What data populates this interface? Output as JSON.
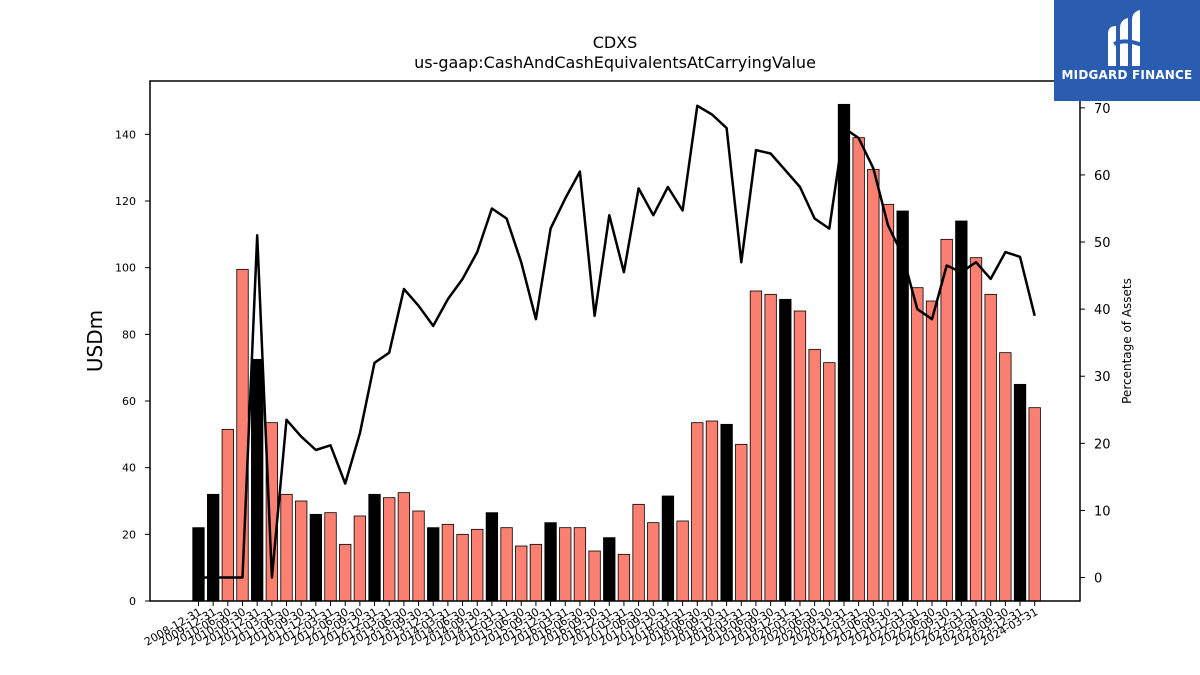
{
  "logo": {
    "text": "MIDGARD FINANCE"
  },
  "colors": {
    "bar_normal": "#fa8072",
    "bar_highlight": "#000000",
    "line": "#000000",
    "logo_bg": "#2a5db0"
  },
  "chart_data": {
    "type": "bar+line",
    "title": "CDXS",
    "subtitle": "us-gaap:CashAndCashEquivalentsAtCarryingValue",
    "ylabel": "USDm",
    "y2label": "Percentage of Assets",
    "ylim": [
      0,
      156
    ],
    "y2lim": [
      -3.5,
      74
    ],
    "yticks": [
      0,
      20,
      40,
      60,
      80,
      100,
      120,
      140
    ],
    "y2ticks": [
      0,
      10,
      20,
      30,
      40,
      50,
      60,
      70
    ],
    "categories": [
      "2008-12-31",
      "2009-12-31",
      "2010-06-30",
      "2010-09-30",
      "2010-12-31",
      "2011-03-31",
      "2011-06-30",
      "2011-09-30",
      "2011-12-31",
      "2012-03-31",
      "2012-06-30",
      "2012-09-30",
      "2012-12-31",
      "2013-03-31",
      "2013-06-30",
      "2013-09-30",
      "2013-12-31",
      "2014-03-31",
      "2014-06-30",
      "2014-09-30",
      "2014-12-31",
      "2015-03-31",
      "2015-06-30",
      "2015-09-30",
      "2015-12-31",
      "2016-03-31",
      "2016-06-30",
      "2016-09-30",
      "2016-12-31",
      "2017-03-31",
      "2017-06-30",
      "2017-09-30",
      "2017-12-31",
      "2018-03-31",
      "2018-06-30",
      "2018-09-30",
      "2018-12-31",
      "2019-03-31",
      "2019-06-30",
      "2019-09-30",
      "2019-12-31",
      "2020-03-31",
      "2020-06-30",
      "2020-09-30",
      "2020-12-31",
      "2021-03-31",
      "2021-06-30",
      "2021-09-30",
      "2021-12-31",
      "2022-03-31",
      "2022-06-30",
      "2022-09-30",
      "2022-12-31",
      "2023-03-31",
      "2023-06-30",
      "2023-09-30",
      "2023-12-31",
      "2024-03-31"
    ],
    "series": [
      {
        "type": "bar",
        "values": [
          22,
          32,
          51.5,
          99.5,
          72.5,
          53.5,
          32,
          30,
          26,
          26.5,
          17,
          25.5,
          32,
          31,
          32.5,
          27,
          22,
          23,
          20,
          21.5,
          26.5,
          22,
          16.5,
          17,
          23.5,
          22,
          22,
          15,
          19,
          14,
          29,
          23.5,
          31.5,
          24,
          53.5,
          54,
          53,
          47,
          93,
          92,
          90.5,
          87,
          75.5,
          71.5,
          149,
          139,
          129.5,
          119,
          117,
          94,
          90,
          108.5,
          114,
          103,
          92,
          74.5,
          65,
          58
        ],
        "highlight": [
          true,
          true,
          false,
          false,
          true,
          false,
          false,
          false,
          true,
          false,
          false,
          false,
          true,
          false,
          false,
          false,
          true,
          false,
          false,
          false,
          true,
          false,
          false,
          false,
          true,
          false,
          false,
          false,
          true,
          false,
          false,
          false,
          true,
          false,
          false,
          false,
          true,
          false,
          false,
          false,
          true,
          false,
          false,
          false,
          true,
          false,
          false,
          false,
          true,
          false,
          false,
          false,
          true,
          false,
          false,
          false,
          true,
          false
        ]
      },
      {
        "type": "line",
        "axis": "right",
        "values": [
          0,
          0,
          0,
          0,
          51,
          0,
          23.5,
          21,
          19,
          19.7,
          14,
          21.5,
          32,
          33.5,
          43,
          40.5,
          37.5,
          41.5,
          44.5,
          48.5,
          55,
          53.5,
          47,
          38.5,
          52,
          56.5,
          60.5,
          39,
          54,
          45.5,
          58,
          54,
          58.2,
          54.7,
          70.3,
          69,
          67,
          47,
          63.7,
          63.2,
          60.7,
          58.2,
          53.5,
          52,
          67,
          65.5,
          61,
          52.5,
          48,
          40,
          38.5,
          46.5,
          45.5,
          47,
          44.5,
          48.5,
          47.8,
          39
        ]
      }
    ]
  }
}
